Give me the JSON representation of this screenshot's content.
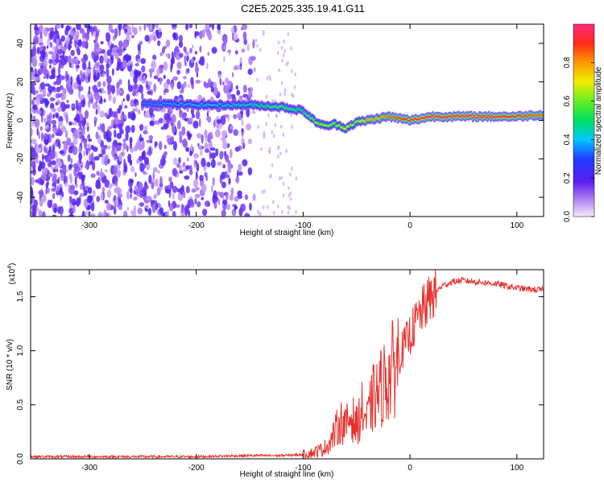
{
  "title": "C2E5.2025.335.19.41.G11",
  "chart_data": [
    {
      "type": "heatmap",
      "xlabel": "Height of straight line (km)",
      "ylabel": "Frequency (Hz)",
      "xlim": [
        -355,
        125
      ],
      "ylim": [
        -50,
        50
      ],
      "x_ticks": [
        -300,
        -200,
        -100,
        0,
        100
      ],
      "y_ticks": [
        -40,
        -20,
        0,
        20,
        40
      ],
      "colorbar": {
        "label": "Normalized spectral amplitude",
        "ticks": [
          0.0,
          0.2,
          0.4,
          0.6,
          0.8
        ],
        "range": [
          0,
          1
        ]
      },
      "ridge": {
        "x": [
          -250,
          -200,
          -150,
          -120,
          -100,
          -90,
          -80,
          -70,
          -60,
          -50,
          -40,
          -30,
          -20,
          -10,
          0,
          20,
          50,
          80,
          100,
          125
        ],
        "y": [
          9,
          8,
          8,
          7,
          5,
          0,
          -3,
          -2,
          -4,
          -1,
          0,
          1,
          2,
          1,
          0,
          2,
          2,
          2,
          2,
          3
        ],
        "peak_amplitude": [
          0.35,
          0.4,
          0.45,
          0.55,
          0.5,
          0.6,
          0.65,
          0.6,
          0.7,
          0.6,
          0.8,
          0.75,
          0.85,
          0.9,
          0.9,
          0.95,
          0.95,
          0.95,
          0.9,
          0.85
        ]
      },
      "noise_region_x": [
        -355,
        -145
      ]
    },
    {
      "type": "line",
      "xlabel": "Height of straight line (km)",
      "ylabel": "SNR (10 * v/v)",
      "y_multiplier": "(x10",
      "y_multiplier_exp": "4",
      "y_multiplier_close": ")",
      "xlim": [
        -355,
        125
      ],
      "ylim": [
        0,
        1.75
      ],
      "x_ticks": [
        -300,
        -200,
        -100,
        0,
        100
      ],
      "y_ticks": [
        0.0,
        0.5,
        1.0,
        1.5
      ],
      "series": [
        {
          "color": "#e8322e",
          "x": [
            -355,
            -300,
            -250,
            -200,
            -150,
            -120,
            -100,
            -90,
            -80,
            -75,
            -70,
            -65,
            -60,
            -55,
            -50,
            -45,
            -40,
            -35,
            -30,
            -25,
            -20,
            -15,
            -10,
            -5,
            0,
            5,
            10,
            20,
            30,
            40,
            50,
            60,
            70,
            80,
            90,
            100,
            110,
            125
          ],
          "y": [
            0.02,
            0.02,
            0.02,
            0.02,
            0.03,
            0.03,
            0.04,
            0.06,
            0.1,
            0.15,
            0.25,
            0.35,
            0.3,
            0.4,
            0.3,
            0.45,
            0.35,
            0.55,
            0.6,
            0.7,
            0.75,
            0.85,
            0.95,
            1.05,
            1.15,
            1.25,
            1.35,
            1.5,
            1.6,
            1.64,
            1.65,
            1.64,
            1.63,
            1.62,
            1.6,
            1.58,
            1.57,
            1.56
          ]
        }
      ]
    }
  ]
}
